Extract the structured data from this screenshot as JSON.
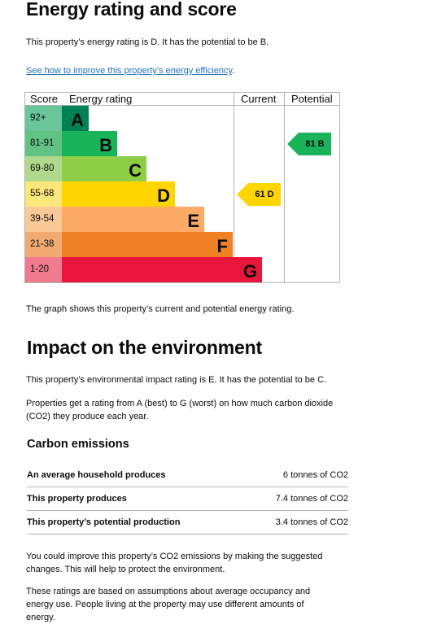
{
  "energy": {
    "title": "Energy rating and score",
    "intro": "This property’s energy rating is D. It has the potential to be B.",
    "link_text": "See how to improve this property’s energy efficiency",
    "link_suffix": ".",
    "caption": "The graph shows this property’s current and potential energy rating."
  },
  "chart_data": {
    "type": "table",
    "headers": {
      "score": "Score",
      "rating": "Energy rating",
      "current": "Current",
      "potential": "Potential"
    },
    "bands": [
      {
        "score": "92+",
        "letter": "A",
        "color": "#008054",
        "score_bg": "#6ac59a",
        "letter_color": "#0b0c0c",
        "bar_fraction": 0.12
      },
      {
        "score": "81-91",
        "letter": "B",
        "color": "#19b459",
        "score_bg": "#60c383",
        "letter_color": "#0b0c0c",
        "bar_fraction": 0.25
      },
      {
        "score": "69-80",
        "letter": "C",
        "color": "#8dce46",
        "score_bg": "#b1d98c",
        "letter_color": "#0b0c0c",
        "bar_fraction": 0.38
      },
      {
        "score": "55-68",
        "letter": "D",
        "color": "#ffd500",
        "score_bg": "#fde67a",
        "letter_color": "#0b0c0c",
        "bar_fraction": 0.51
      },
      {
        "score": "39-54",
        "letter": "E",
        "color": "#fcaa65",
        "score_bg": "#fbc898",
        "letter_color": "#0b0c0c",
        "bar_fraction": 0.64
      },
      {
        "score": "21-38",
        "letter": "F",
        "color": "#ef8023",
        "score_bg": "#f1ab72",
        "letter_color": "#0b0c0c",
        "bar_fraction": 0.77
      },
      {
        "score": "1-20",
        "letter": "G",
        "color": "#e9153b",
        "score_bg": "#f07b8f",
        "letter_color": "#0b0c0c",
        "bar_fraction": 0.9
      }
    ],
    "current": {
      "label": "61 D",
      "score": 61,
      "band": 3,
      "color": "#ffd500"
    },
    "potential": {
      "label": "81 B",
      "score": 81,
      "band": 1,
      "color": "#19b459"
    }
  },
  "environment": {
    "title": "Impact on the environment",
    "intro": "This property’s environmental impact rating is E. It has the potential to be C.",
    "explain": "Properties get a rating from A (best) to G (worst) on how much carbon dioxide (CO2) they produce each year.",
    "subtitle": "Carbon emissions",
    "rows": [
      {
        "label": "An average household produces",
        "value": "6 tonnes of CO2"
      },
      {
        "label": "This property produces",
        "value": "7.4 tonnes of CO2"
      },
      {
        "label": "This property’s potential production",
        "value": "3.4 tonnes of CO2"
      }
    ],
    "improve": "You could improve this property’s CO2 emissions by making the suggested changes. This will help to protect the environment.",
    "assumptions": "These ratings are based on assumptions about average occupancy and energy use. People living at the property may use different amounts of energy."
  }
}
